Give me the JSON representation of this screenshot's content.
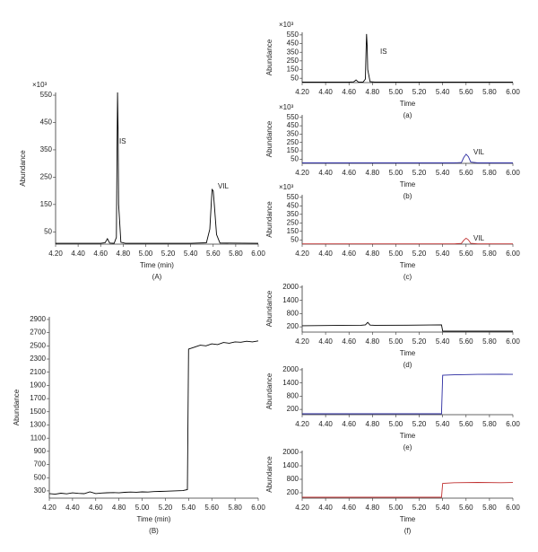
{
  "chart_data": [
    {
      "type": "line",
      "caption": "(A)",
      "xlabel": "Time (min)",
      "ylabel": "Abundance",
      "y_unit_label": "×10³",
      "annotations": [
        "IS",
        "VIL"
      ],
      "color": "#000000",
      "x": [
        4.2,
        4.4,
        4.6,
        4.64,
        4.66,
        4.68,
        4.72,
        4.74,
        4.745,
        4.75,
        4.755,
        4.76,
        4.78,
        4.82,
        5.0,
        5.4,
        5.54,
        5.57,
        5.59,
        5.6,
        5.61,
        5.63,
        5.66,
        6.0
      ],
      "values": [
        8,
        8,
        8,
        10,
        25,
        9,
        8,
        30,
        300,
        560,
        420,
        150,
        12,
        8,
        8,
        8,
        10,
        60,
        205,
        200,
        150,
        40,
        9,
        8
      ],
      "xlim": [
        4.2,
        6.0
      ],
      "ylim": [
        5,
        560
      ],
      "xticks": [
        {
          "value": 4.2,
          "label": "4.20"
        },
        {
          "value": 4.4,
          "label": "4.40"
        },
        {
          "value": 4.6,
          "label": "4.60"
        },
        {
          "value": 4.8,
          "label": "4.80"
        },
        {
          "value": 5.0,
          "label": "5.00"
        },
        {
          "value": 5.2,
          "label": "5.20"
        },
        {
          "value": 5.4,
          "label": "5.40"
        },
        {
          "value": 5.6,
          "label": "5.60"
        },
        {
          "value": 5.8,
          "label": "5.80"
        },
        {
          "value": 6.0,
          "label": "6.00"
        }
      ],
      "yticks": [
        50,
        150,
        250,
        350,
        450,
        550
      ]
    },
    {
      "type": "line",
      "caption": "(B)",
      "xlabel": "Time (min)",
      "ylabel": "Abundance",
      "color": "#000000",
      "x": [
        4.2,
        4.25,
        4.3,
        4.35,
        4.4,
        4.45,
        4.5,
        4.55,
        4.6,
        4.65,
        4.7,
        4.75,
        4.8,
        4.85,
        4.9,
        4.95,
        5.0,
        5.05,
        5.1,
        5.15,
        5.2,
        5.25,
        5.3,
        5.35,
        5.39,
        5.4,
        5.45,
        5.5,
        5.55,
        5.6,
        5.65,
        5.7,
        5.75,
        5.8,
        5.85,
        5.9,
        5.95,
        6.0
      ],
      "values": [
        260,
        250,
        265,
        255,
        270,
        262,
        258,
        285,
        260,
        268,
        272,
        275,
        270,
        278,
        282,
        280,
        285,
        283,
        290,
        292,
        295,
        298,
        302,
        305,
        320,
        2450,
        2480,
        2510,
        2500,
        2530,
        2520,
        2550,
        2540,
        2560,
        2555,
        2570,
        2560,
        2575
      ],
      "xlim": [
        4.2,
        6.0
      ],
      "ylim": [
        190,
        2940
      ],
      "xticks": [
        {
          "value": 4.2,
          "label": "4.20"
        },
        {
          "value": 4.4,
          "label": "4.40"
        },
        {
          "value": 4.6,
          "label": "4.60"
        },
        {
          "value": 4.8,
          "label": "4.80"
        },
        {
          "value": 5.0,
          "label": "5.00"
        },
        {
          "value": 5.2,
          "label": "5.20"
        },
        {
          "value": 5.4,
          "label": "5.40"
        },
        {
          "value": 5.6,
          "label": "5.60"
        },
        {
          "value": 5.8,
          "label": "5.80"
        },
        {
          "value": 6.0,
          "label": "6.00"
        }
      ],
      "yticks": [
        300,
        500,
        700,
        900,
        1100,
        1300,
        1500,
        1700,
        1900,
        2100,
        2300,
        2500,
        2700,
        2900
      ]
    },
    {
      "type": "line",
      "caption": "(a)",
      "xlabel": "Time",
      "ylabel": "Abundance",
      "y_unit_label": "×10³",
      "annotations": [
        "IS"
      ],
      "color": "#000000",
      "x": [
        4.2,
        4.6,
        4.64,
        4.66,
        4.68,
        4.72,
        4.74,
        4.745,
        4.75,
        4.755,
        4.76,
        4.78,
        4.82,
        5.6,
        6.0
      ],
      "values": [
        5,
        5,
        8,
        30,
        6,
        5,
        40,
        350,
        560,
        420,
        150,
        10,
        5,
        5,
        5
      ],
      "xlim": [
        4.2,
        6.0
      ],
      "ylim": [
        0,
        580
      ],
      "xticks": [
        {
          "value": 4.2,
          "label": "4.20"
        },
        {
          "value": 4.4,
          "label": "4.40"
        },
        {
          "value": 4.6,
          "label": "4.60"
        },
        {
          "value": 4.8,
          "label": "4.80"
        },
        {
          "value": 5.0,
          "label": "5.00"
        },
        {
          "value": 5.2,
          "label": "5.20"
        },
        {
          "value": 5.4,
          "label": "5.40"
        },
        {
          "value": 5.6,
          "label": "5.60"
        },
        {
          "value": 5.8,
          "label": "5.80"
        },
        {
          "value": 6.0,
          "label": "6.00"
        }
      ],
      "yticks": [
        50,
        150,
        250,
        350,
        450,
        550
      ]
    },
    {
      "type": "line",
      "caption": "(b)",
      "xlabel": "Time",
      "ylabel": "Abundance",
      "y_unit_label": "×10³",
      "annotations": [
        "VIL"
      ],
      "color": "#2a2aa0",
      "x": [
        4.2,
        5.5,
        5.56,
        5.58,
        5.6,
        5.62,
        5.64,
        5.7,
        6.0
      ],
      "values": [
        5,
        5,
        10,
        70,
        110,
        80,
        15,
        5,
        5
      ],
      "xlim": [
        4.2,
        6.0
      ],
      "ylim": [
        0,
        580
      ],
      "xticks": [
        {
          "value": 4.2,
          "label": "4.20"
        },
        {
          "value": 4.4,
          "label": "4.40"
        },
        {
          "value": 4.6,
          "label": "4.60"
        },
        {
          "value": 4.8,
          "label": "4.80"
        },
        {
          "value": 5.0,
          "label": "5.00"
        },
        {
          "value": 5.2,
          "label": "5.20"
        },
        {
          "value": 5.4,
          "label": "5.40"
        },
        {
          "value": 5.6,
          "label": "5.60"
        },
        {
          "value": 5.8,
          "label": "5.80"
        },
        {
          "value": 6.0,
          "label": "6.00"
        }
      ],
      "yticks": [
        50,
        150,
        250,
        350,
        450,
        550
      ]
    },
    {
      "type": "line",
      "caption": "(c)",
      "xlabel": "Time",
      "ylabel": "Abundance",
      "y_unit_label": "×10³",
      "annotations": [
        "VIL"
      ],
      "color": "#c03030",
      "x": [
        4.2,
        5.5,
        5.56,
        5.58,
        5.6,
        5.62,
        5.64,
        5.7,
        6.0
      ],
      "values": [
        3,
        3,
        8,
        45,
        70,
        50,
        10,
        3,
        3
      ],
      "xlim": [
        4.2,
        6.0
      ],
      "ylim": [
        0,
        580
      ],
      "xticks": [
        {
          "value": 4.2,
          "label": "4.20"
        },
        {
          "value": 4.4,
          "label": "4.40"
        },
        {
          "value": 4.6,
          "label": "4.60"
        },
        {
          "value": 4.8,
          "label": "4.80"
        },
        {
          "value": 5.0,
          "label": "5.00"
        },
        {
          "value": 5.2,
          "label": "5.20"
        },
        {
          "value": 5.4,
          "label": "5.40"
        },
        {
          "value": 5.6,
          "label": "5.60"
        },
        {
          "value": 5.8,
          "label": "5.80"
        },
        {
          "value": 6.0,
          "label": "6.00"
        }
      ],
      "yticks": [
        50,
        150,
        250,
        350,
        450,
        550
      ]
    },
    {
      "type": "line",
      "caption": "(d)",
      "xlabel": "Time",
      "ylabel": "Abundance",
      "color": "#000000",
      "x": [
        4.2,
        4.5,
        4.7,
        4.74,
        4.76,
        4.78,
        4.82,
        5.1,
        5.39,
        5.4,
        6.0
      ],
      "values": [
        250,
        260,
        270,
        290,
        400,
        280,
        270,
        275,
        290,
        0,
        0
      ],
      "xlim": [
        4.2,
        6.0
      ],
      "ylim": [
        -40,
        2080
      ],
      "xticks": [
        {
          "value": 4.2,
          "label": "4.20"
        },
        {
          "value": 4.4,
          "label": "4.40"
        },
        {
          "value": 4.6,
          "label": "4.60"
        },
        {
          "value": 4.8,
          "label": "4.80"
        },
        {
          "value": 5.0,
          "label": "5.00"
        },
        {
          "value": 5.2,
          "label": "5.20"
        },
        {
          "value": 5.4,
          "label": "5.40"
        },
        {
          "value": 5.6,
          "label": "5.60"
        },
        {
          "value": 5.8,
          "label": "5.80"
        },
        {
          "value": 6.0,
          "label": "6.00"
        }
      ],
      "yticks": [
        200,
        800,
        1400,
        2000
      ]
    },
    {
      "type": "line",
      "caption": "(e)",
      "xlabel": "Time",
      "ylabel": "Abundance",
      "color": "#2a2aa0",
      "x": [
        4.2,
        5.39,
        5.4,
        5.5,
        5.7,
        5.9,
        6.0
      ],
      "values": [
        0,
        0,
        1750,
        1770,
        1790,
        1800,
        1790
      ],
      "xlim": [
        4.2,
        6.0
      ],
      "ylim": [
        -40,
        2080
      ],
      "xticks": [
        {
          "value": 4.2,
          "label": "4.20"
        },
        {
          "value": 4.4,
          "label": "4.40"
        },
        {
          "value": 4.6,
          "label": "4.60"
        },
        {
          "value": 4.8,
          "label": "4.80"
        },
        {
          "value": 5.0,
          "label": "5.00"
        },
        {
          "value": 5.2,
          "label": "5.20"
        },
        {
          "value": 5.4,
          "label": "5.40"
        },
        {
          "value": 5.6,
          "label": "5.60"
        },
        {
          "value": 5.8,
          "label": "5.80"
        },
        {
          "value": 6.0,
          "label": "6.00"
        }
      ],
      "yticks": [
        200,
        800,
        1400,
        2000
      ]
    },
    {
      "type": "line",
      "caption": "(f)",
      "xlabel": "Time",
      "ylabel": "Abundance",
      "color": "#c03030",
      "x": [
        4.2,
        5.39,
        5.4,
        5.5,
        5.7,
        5.9,
        6.0
      ],
      "values": [
        0,
        0,
        620,
        650,
        660,
        650,
        655
      ],
      "xlim": [
        4.2,
        6.0
      ],
      "ylim": [
        -40,
        2080
      ],
      "xticks": [
        {
          "value": 4.2,
          "label": "4.20"
        },
        {
          "value": 4.4,
          "label": "4.40"
        },
        {
          "value": 4.6,
          "label": "4.60"
        },
        {
          "value": 4.8,
          "label": "4.80"
        },
        {
          "value": 5.0,
          "label": "5.00"
        },
        {
          "value": 5.2,
          "label": "5.20"
        },
        {
          "value": 5.4,
          "label": "5.40"
        },
        {
          "value": 5.6,
          "label": "5.60"
        },
        {
          "value": 5.8,
          "label": "5.80"
        },
        {
          "value": 6.0,
          "label": "6.00"
        }
      ],
      "yticks": [
        200,
        800,
        1400,
        2000
      ]
    }
  ]
}
